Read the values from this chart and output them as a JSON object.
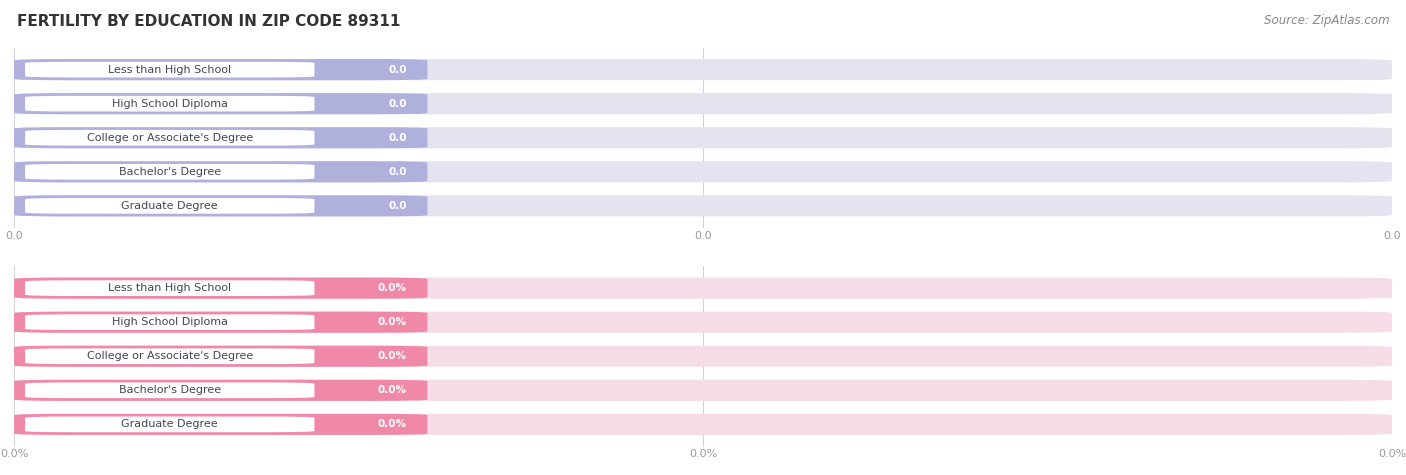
{
  "title": "FERTILITY BY EDUCATION IN ZIP CODE 89311",
  "source": "Source: ZipAtlas.com",
  "categories": [
    "Less than High School",
    "High School Diploma",
    "College or Associate's Degree",
    "Bachelor's Degree",
    "Graduate Degree"
  ],
  "values_top": [
    0.0,
    0.0,
    0.0,
    0.0,
    0.0
  ],
  "values_bottom": [
    0.0,
    0.0,
    0.0,
    0.0,
    0.0
  ],
  "bar_color_top": "#b0b0dd",
  "bar_color_bottom": "#f088a8",
  "bar_bg_color_top": "#e4e4f0",
  "bar_bg_color_bottom": "#f5dce6",
  "label_color": "#444455",
  "value_color": "#ffffff",
  "tick_color": "#999999",
  "bg_color": "#ffffff",
  "grid_color": "#d0d0d0",
  "title_fontsize": 11,
  "source_fontsize": 8.5,
  "label_fontsize": 8,
  "value_fontsize": 7.5
}
